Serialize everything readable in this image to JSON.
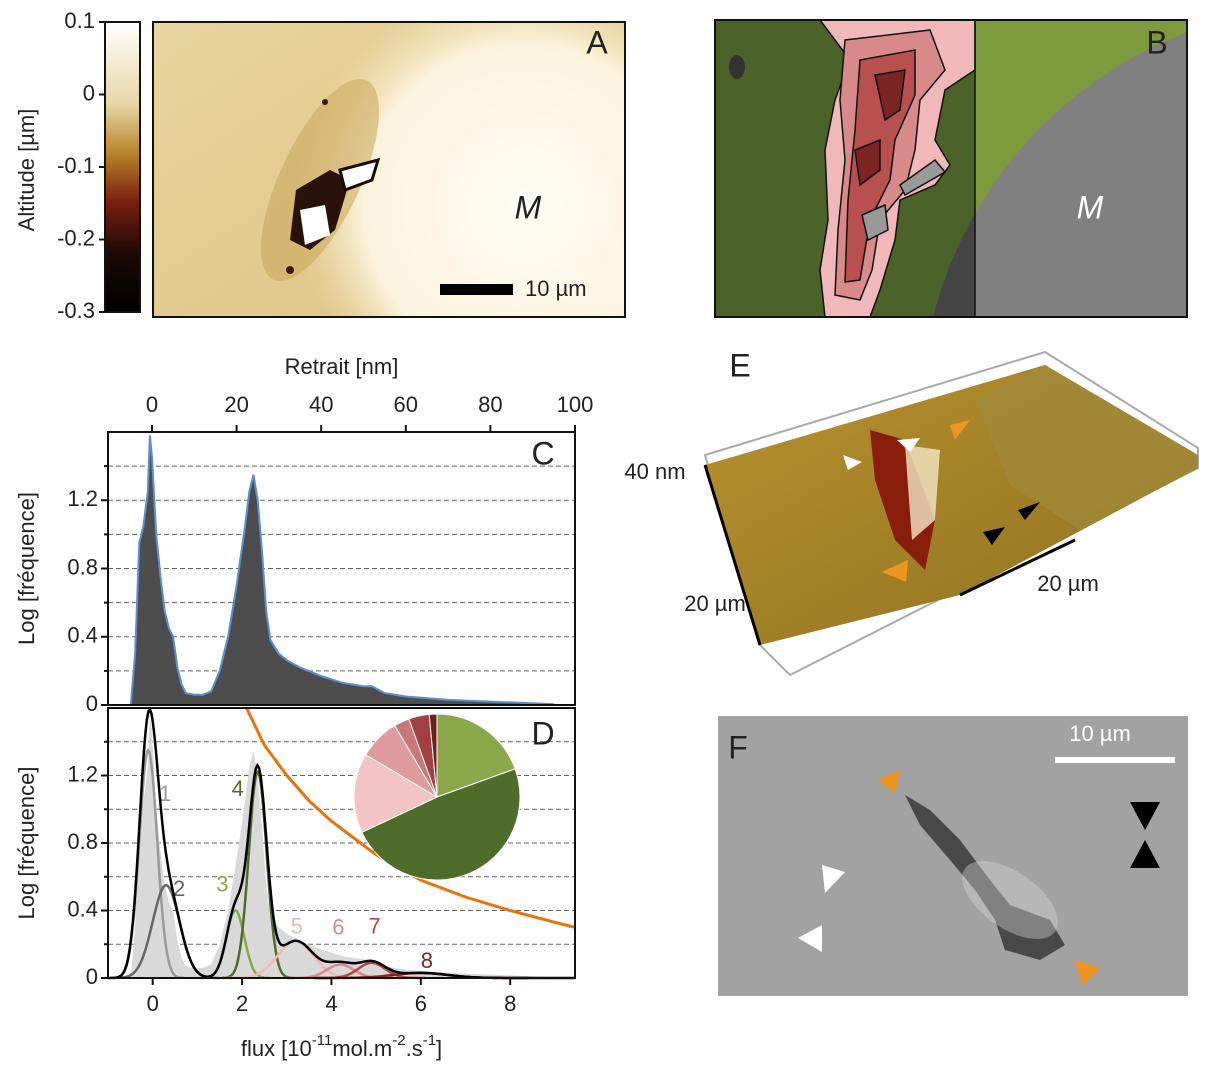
{
  "panels": {
    "A": {
      "letter": "A",
      "label_M": "M",
      "scale_bar": "10 µm",
      "colorbar": {
        "label": "Altitude [µm]",
        "lim": [
          -0.3,
          0.1
        ],
        "ticks": [
          0.1,
          0,
          -0.1,
          -0.2,
          -0.3
        ]
      }
    },
    "B": {
      "letter": "B",
      "label_M": "M"
    },
    "E": {
      "letter": "E",
      "z_scale": "40 nm",
      "x_scale": "20 µm",
      "y_scale": "20 µm"
    },
    "F": {
      "letter": "F",
      "scale_bar": "10 µm"
    }
  },
  "chart_data": [
    {
      "type": "area",
      "panel": "C",
      "x_label": "Retrait [nm]",
      "y_label": "Log [fréquence]",
      "x": [
        -5,
        -4,
        -3,
        -2,
        -1,
        -0.5,
        0,
        1,
        2,
        3,
        4,
        5,
        6,
        7,
        8,
        10,
        12,
        14,
        16,
        18,
        20,
        22,
        23,
        24,
        25,
        26,
        27,
        28,
        30,
        32,
        35,
        40,
        45,
        50,
        52,
        55,
        60,
        70,
        80,
        90,
        95
      ],
      "values": [
        0,
        0.3,
        0.95,
        1.05,
        1.25,
        1.58,
        1.45,
        1.0,
        0.75,
        0.55,
        0.45,
        0.4,
        0.22,
        0.12,
        0.07,
        0.06,
        0.06,
        0.08,
        0.2,
        0.4,
        0.7,
        1.05,
        1.25,
        1.35,
        1.2,
        0.9,
        0.55,
        0.38,
        0.3,
        0.26,
        0.22,
        0.17,
        0.13,
        0.11,
        0.11,
        0.07,
        0.05,
        0.03,
        0.02,
        0.01,
        0.005
      ],
      "color": "#4d4d4d",
      "line_color": "#5b8fd0",
      "xlim": [
        -10.4,
        100
      ],
      "xticks": [
        0,
        20,
        40,
        60,
        80,
        100
      ],
      "ylim": [
        0,
        1.6
      ],
      "yticks": [
        0,
        0.4,
        0.8,
        1.2
      ],
      "minor_yticks": [
        0.2,
        0.6,
        1,
        1.4
      ],
      "grid": true
    },
    {
      "type": "gaussian-fit",
      "panel": "D",
      "x_label_parts": [
        "flux [10",
        "-11",
        "mol.m",
        "-2",
        ".s",
        "-1",
        "]"
      ],
      "y_label": "Log [fréquence]",
      "xlim": [
        -1,
        9.45
      ],
      "xticks": [
        0,
        2,
        4,
        6,
        8
      ],
      "ylim": [
        0,
        1.6
      ],
      "yticks": [
        0,
        0.4,
        0.8,
        1.2
      ],
      "minor_yticks": [
        0.2,
        0.6,
        1,
        1.4
      ],
      "grid": true,
      "fit_color": "#000000",
      "histogram_color": "#d9d9d9",
      "components": [
        {
          "name": "1",
          "color": "#9a9a9a",
          "mean": -0.1,
          "sigma": 0.2,
          "peak": 1.35
        },
        {
          "name": "2",
          "color": "#666666",
          "mean": 0.3,
          "sigma": 0.3,
          "peak": 0.55
        },
        {
          "name": "3",
          "color": "#8aa84a",
          "mean": 1.85,
          "sigma": 0.2,
          "peak": 0.4
        },
        {
          "name": "4",
          "color": "#4f6d2a",
          "mean": 2.35,
          "sigma": 0.2,
          "peak": 1.22
        },
        {
          "name": "5",
          "color": "#f0b8b8",
          "mean": 3.2,
          "sigma": 0.4,
          "peak": 0.22
        },
        {
          "name": "6",
          "color": "#d88a8a",
          "mean": 4.2,
          "sigma": 0.3,
          "peak": 0.08
        },
        {
          "name": "7",
          "color": "#b04848",
          "mean": 4.9,
          "sigma": 0.3,
          "peak": 0.09
        },
        {
          "name": "8",
          "color": "#7a2424",
          "mean": 6,
          "sigma": 0.6,
          "peak": 0.03
        }
      ],
      "threshold": {
        "color": "#e8730c",
        "x": [
          2.1,
          2.5,
          3,
          3.5,
          4,
          5,
          6,
          7,
          8,
          9,
          9.45
        ],
        "values": [
          1.6,
          1.38,
          1.2,
          1.05,
          0.93,
          0.73,
          0.58,
          0.48,
          0.4,
          0.33,
          0.3
        ]
      },
      "pie": {
        "values": [
          19.5,
          48.5,
          15.5,
          8,
          3,
          4,
          1.5
        ],
        "colors": [
          "#8aa84a",
          "#4f6d2a",
          "#f3c4c4",
          "#e09c9c",
          "#c87878",
          "#a04040",
          "#6e2020"
        ]
      }
    }
  ]
}
